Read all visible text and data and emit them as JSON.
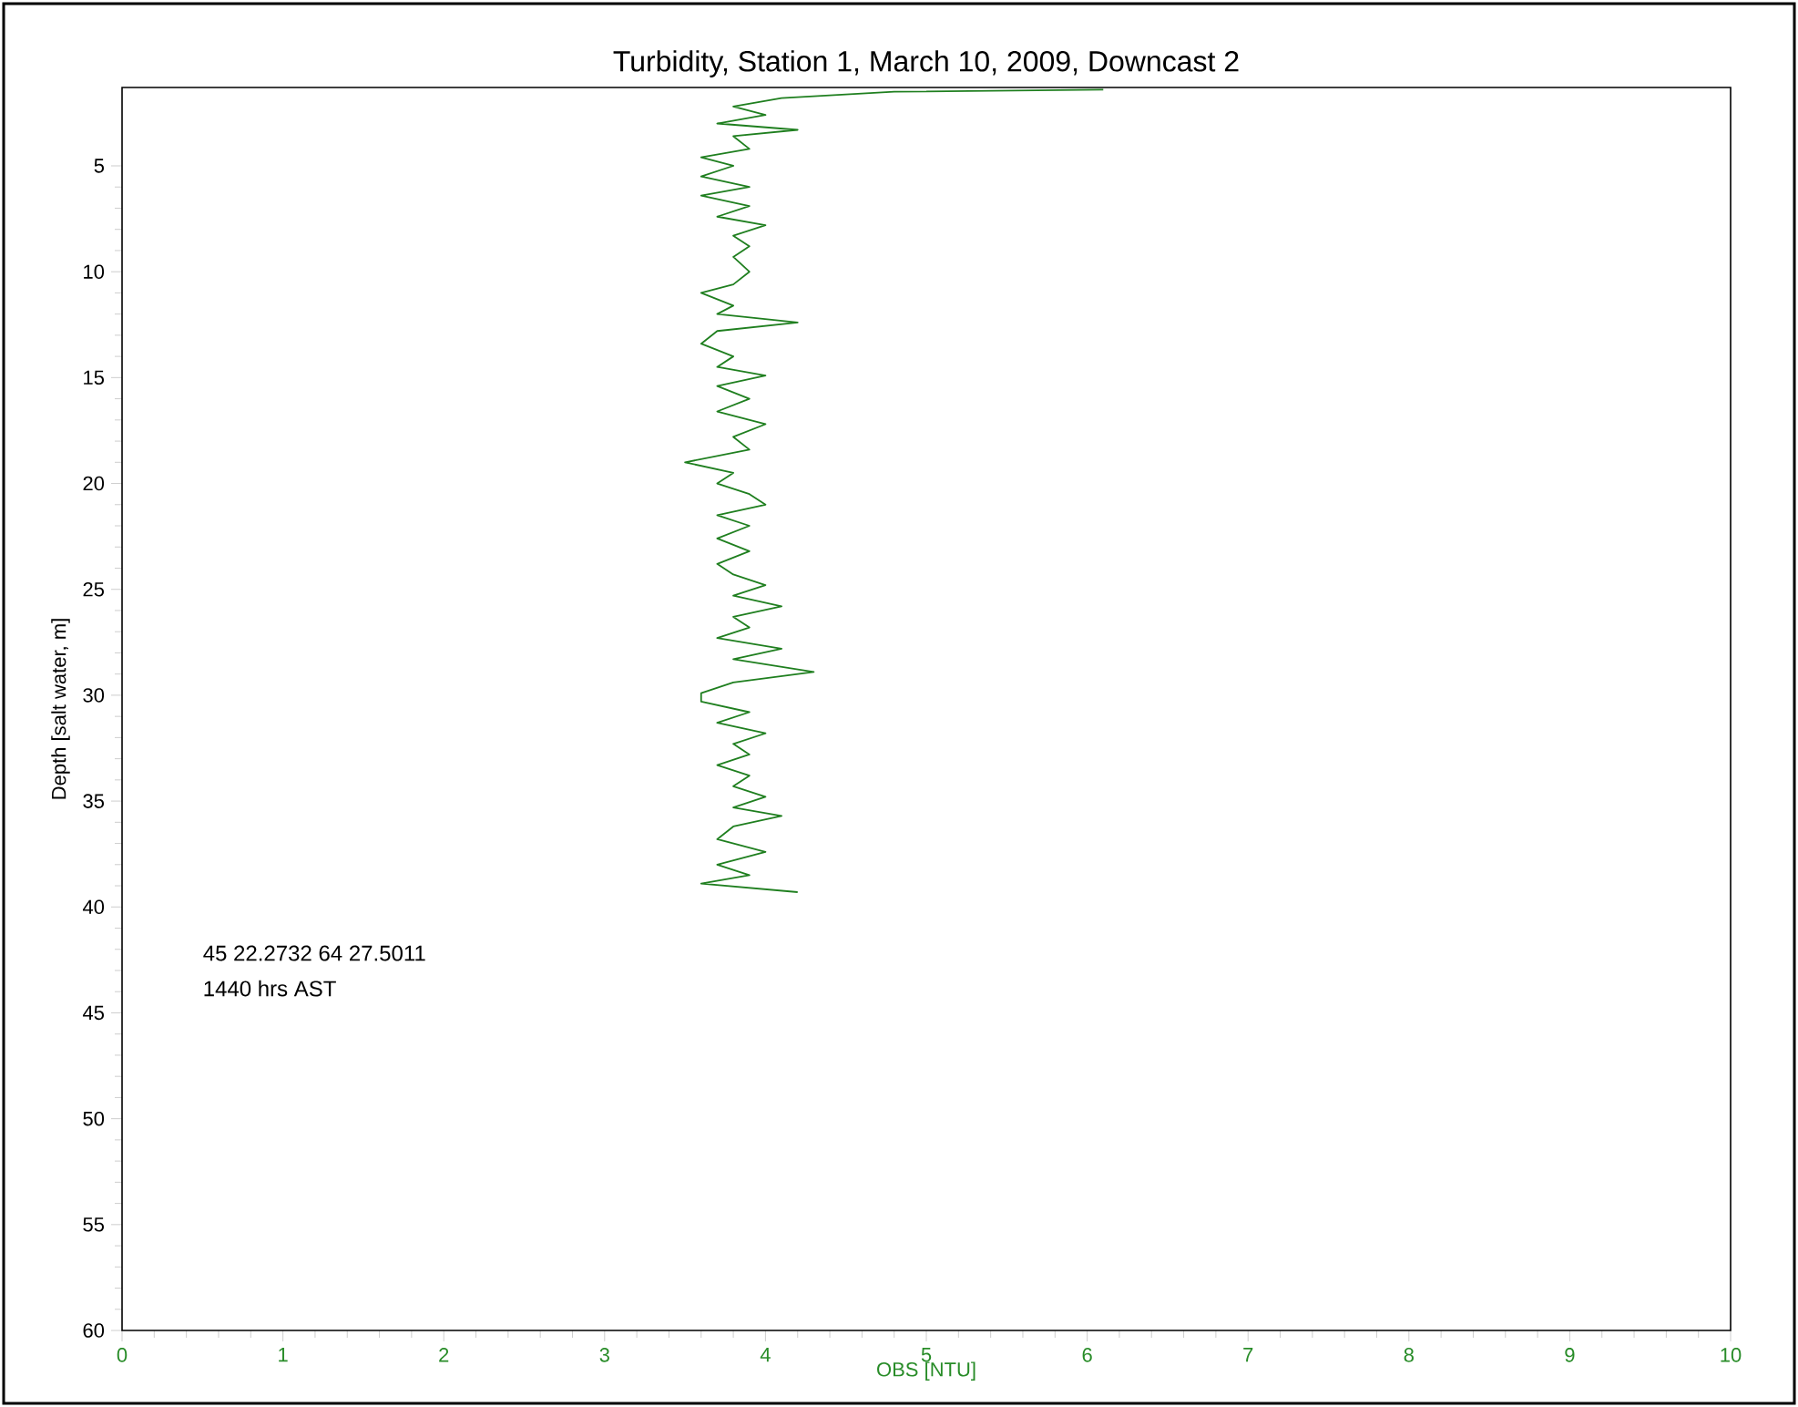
{
  "chart_data": {
    "type": "line",
    "title": "Turbidity, Station 1, March 10, 2009, Downcast 2",
    "xlabel": "OBS [NTU]",
    "ylabel": "Depth [salt water, m]",
    "annotations": [
      "45 22.2732    64 27.5011",
      "1440 hrs AST"
    ],
    "xlim": [
      0,
      10
    ],
    "ylim": [
      60,
      1.3
    ],
    "xticks": [
      0,
      1,
      2,
      3,
      4,
      5,
      6,
      7,
      8,
      9,
      10
    ],
    "yticks": [
      5,
      10,
      15,
      20,
      25,
      30,
      35,
      40,
      45,
      50,
      55,
      60
    ],
    "series": [
      {
        "color": "#1f7f1f",
        "x": [
          6.1,
          4.8,
          4.1,
          3.8,
          4.0,
          3.7,
          4.2,
          3.8,
          3.9,
          3.6,
          3.8,
          3.6,
          3.9,
          3.6,
          3.9,
          3.7,
          4.0,
          3.8,
          3.9,
          3.8,
          3.9,
          3.8,
          3.6,
          3.8,
          3.7,
          4.2,
          3.7,
          3.6,
          3.8,
          3.7,
          4.0,
          3.7,
          3.9,
          3.7,
          4.0,
          3.8,
          3.9,
          3.5,
          3.8,
          3.7,
          3.9,
          4.0,
          3.7,
          3.9,
          3.7,
          3.9,
          3.7,
          3.8,
          4.0,
          3.8,
          4.1,
          3.8,
          3.9,
          3.7,
          4.1,
          3.8,
          4.3,
          3.8,
          3.6,
          3.6,
          3.9,
          3.7,
          4.0,
          3.8,
          3.9,
          3.7,
          3.9,
          3.8,
          4.0,
          3.8,
          4.1,
          3.8,
          3.7,
          4.0,
          3.7,
          3.9,
          3.6,
          4.2
        ],
        "values": [
          1.4,
          1.5,
          1.8,
          2.2,
          2.6,
          3.0,
          3.3,
          3.6,
          4.2,
          4.6,
          5.0,
          5.5,
          6.0,
          6.4,
          6.9,
          7.4,
          7.8,
          8.3,
          8.8,
          9.3,
          10.0,
          10.6,
          11.0,
          11.6,
          12.0,
          12.4,
          12.8,
          13.4,
          14.0,
          14.5,
          14.9,
          15.4,
          16.0,
          16.6,
          17.2,
          17.8,
          18.4,
          19.0,
          19.5,
          20.0,
          20.5,
          21.0,
          21.5,
          22.0,
          22.6,
          23.2,
          23.8,
          24.3,
          24.8,
          25.3,
          25.8,
          26.3,
          26.8,
          27.3,
          27.8,
          28.3,
          28.9,
          29.4,
          29.9,
          30.3,
          30.8,
          31.3,
          31.8,
          32.3,
          32.8,
          33.3,
          33.8,
          34.3,
          34.8,
          35.3,
          35.7,
          36.2,
          36.8,
          37.4,
          38.0,
          38.5,
          38.9,
          39.3
        ]
      }
    ]
  }
}
